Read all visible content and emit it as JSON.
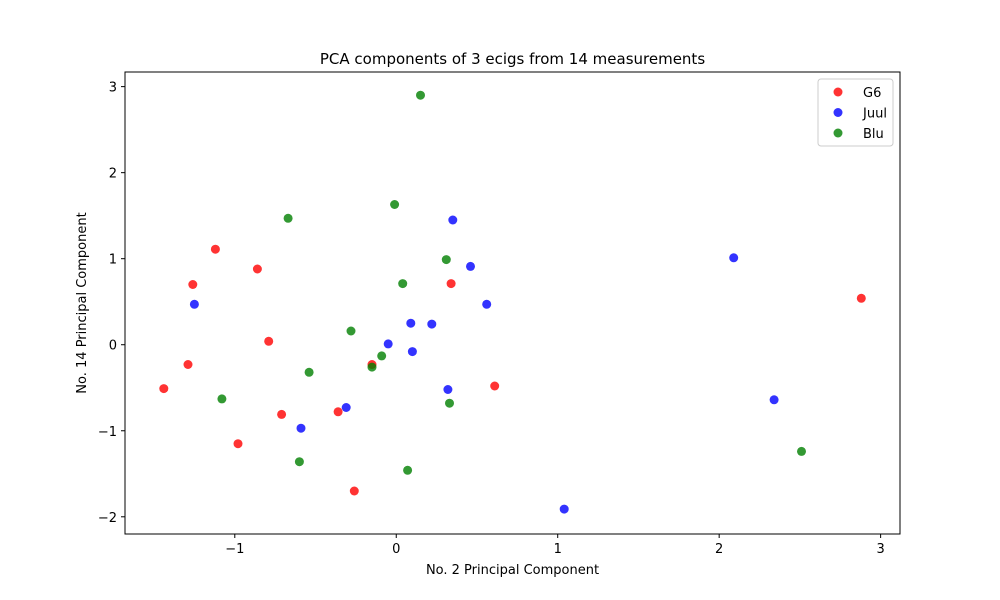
{
  "chart_data": {
    "type": "scatter",
    "title": "PCA components of 3 ecigs from 14 measurements",
    "xlabel": "No. 2 Principal Component",
    "ylabel": "No. 14 Principal Component",
    "xlim": [
      -1.68,
      3.12
    ],
    "ylim": [
      -2.2,
      3.17
    ],
    "xticks": [
      -1,
      0,
      1,
      2,
      3
    ],
    "yticks": [
      -2,
      -1,
      0,
      1,
      2,
      3
    ],
    "xtick_labels": [
      "−1",
      "0",
      "1",
      "2",
      "3"
    ],
    "ytick_labels": [
      "−2",
      "−1",
      "0",
      "1",
      "2",
      "3"
    ],
    "grid": false,
    "legend_position": "top-right",
    "series": [
      {
        "name": "G6",
        "color": "#ff0000",
        "points": [
          [
            2.88,
            0.54
          ],
          [
            -1.12,
            1.11
          ],
          [
            -1.26,
            0.7
          ],
          [
            -0.86,
            0.88
          ],
          [
            0.34,
            0.71
          ],
          [
            -0.79,
            0.04
          ],
          [
            -1.29,
            -0.23
          ],
          [
            -1.44,
            -0.51
          ],
          [
            -0.15,
            -0.23
          ],
          [
            0.61,
            -0.48
          ],
          [
            -0.71,
            -0.81
          ],
          [
            -0.36,
            -0.78
          ],
          [
            -0.98,
            -1.15
          ],
          [
            -0.26,
            -1.7
          ]
        ]
      },
      {
        "name": "Juul",
        "color": "#0000ff",
        "points": [
          [
            2.09,
            1.01
          ],
          [
            0.35,
            1.45
          ],
          [
            0.46,
            0.91
          ],
          [
            0.56,
            0.47
          ],
          [
            -1.25,
            0.47
          ],
          [
            0.09,
            0.25
          ],
          [
            0.22,
            0.24
          ],
          [
            -0.05,
            0.01
          ],
          [
            0.1,
            -0.08
          ],
          [
            0.32,
            -0.52
          ],
          [
            -0.31,
            -0.73
          ],
          [
            -0.59,
            -0.97
          ],
          [
            2.34,
            -0.64
          ],
          [
            1.04,
            -1.91
          ]
        ]
      },
      {
        "name": "Blu",
        "color": "#008000",
        "points": [
          [
            0.15,
            2.9
          ],
          [
            -0.67,
            1.47
          ],
          [
            -0.01,
            1.63
          ],
          [
            0.31,
            0.99
          ],
          [
            0.04,
            0.71
          ],
          [
            -0.28,
            0.16
          ],
          [
            -0.09,
            -0.13
          ],
          [
            -0.15,
            -0.26
          ],
          [
            -0.54,
            -0.32
          ],
          [
            -1.08,
            -0.63
          ],
          [
            0.33,
            -0.68
          ],
          [
            -0.6,
            -1.36
          ],
          [
            0.07,
            -1.46
          ],
          [
            2.51,
            -1.24
          ]
        ]
      }
    ]
  }
}
